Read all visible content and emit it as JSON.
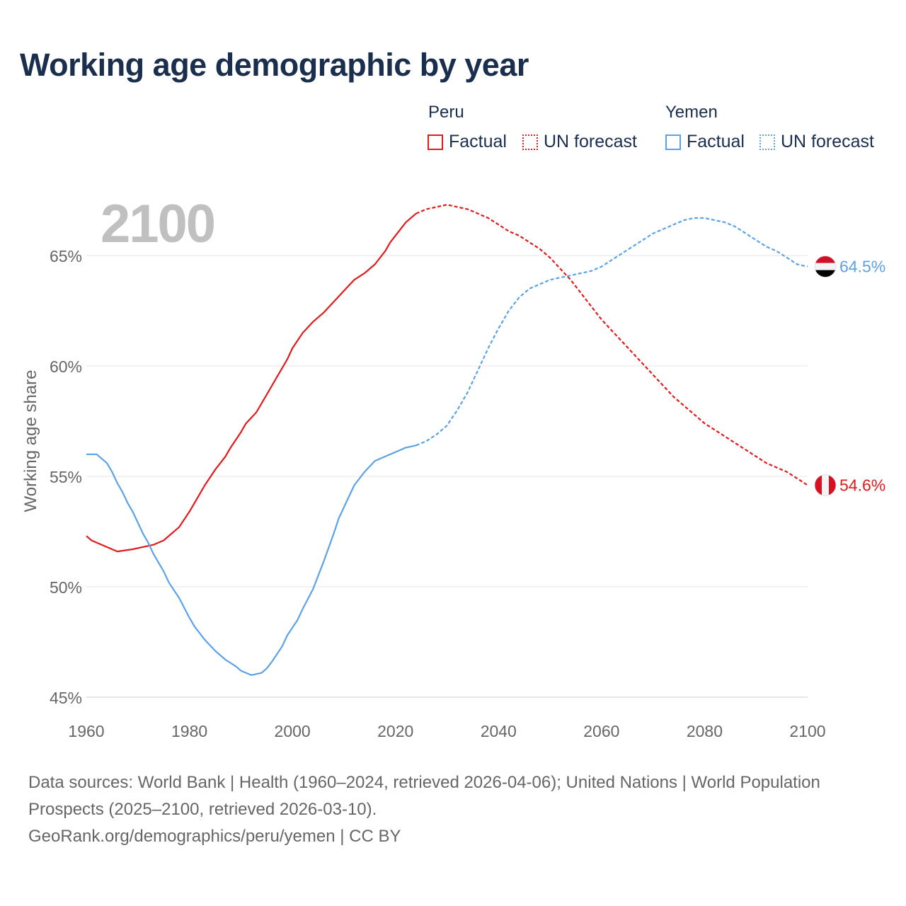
{
  "title": "Working age demographic by year",
  "legend": {
    "groups": [
      {
        "name": "Peru",
        "factual_label": "Factual",
        "forecast_label": "UN forecast",
        "color": "#e31a1c"
      },
      {
        "name": "Yemen",
        "factual_label": "Factual",
        "forecast_label": "UN forecast",
        "color": "#5ba3e6"
      }
    ]
  },
  "year_overlay": "2100",
  "chart_data": {
    "type": "line",
    "title": "Working age demographic by year",
    "xlabel": "",
    "ylabel": "Working age share",
    "xlim": [
      1960,
      2100
    ],
    "ylim": [
      45,
      67.5
    ],
    "x_ticks": [
      1960,
      1980,
      2000,
      2020,
      2040,
      2060,
      2080,
      2100
    ],
    "x_tick_labels": [
      "1960",
      "1980",
      "2000",
      "2020",
      "2040",
      "2060",
      "2080",
      "2100"
    ],
    "y_ticks": [
      45,
      50,
      55,
      60,
      65
    ],
    "y_tick_labels": [
      "45%",
      "50%",
      "55%",
      "60%",
      "65%"
    ],
    "grid": true,
    "factual_end_year": 2024,
    "series": [
      {
        "name": "Peru",
        "color": "#e31a1c",
        "end_label": "54.6%",
        "flag": "peru-flag",
        "points": [
          [
            1960,
            52.3
          ],
          [
            1961,
            52.1
          ],
          [
            1963,
            51.9
          ],
          [
            1965,
            51.7
          ],
          [
            1966,
            51.6
          ],
          [
            1969,
            51.7
          ],
          [
            1971,
            51.8
          ],
          [
            1973,
            51.9
          ],
          [
            1975,
            52.1
          ],
          [
            1978,
            52.7
          ],
          [
            1980,
            53.4
          ],
          [
            1981,
            53.8
          ],
          [
            1983,
            54.6
          ],
          [
            1985,
            55.3
          ],
          [
            1987,
            55.9
          ],
          [
            1988,
            56.3
          ],
          [
            1990,
            57.0
          ],
          [
            1991,
            57.4
          ],
          [
            1993,
            57.9
          ],
          [
            1995,
            58.7
          ],
          [
            1997,
            59.5
          ],
          [
            1999,
            60.3
          ],
          [
            2000,
            60.8
          ],
          [
            2002,
            61.5
          ],
          [
            2004,
            62.0
          ],
          [
            2006,
            62.4
          ],
          [
            2008,
            62.9
          ],
          [
            2010,
            63.4
          ],
          [
            2012,
            63.9
          ],
          [
            2014,
            64.2
          ],
          [
            2016,
            64.6
          ],
          [
            2018,
            65.2
          ],
          [
            2019,
            65.6
          ],
          [
            2021,
            66.2
          ],
          [
            2022,
            66.5
          ],
          [
            2024,
            66.9
          ],
          [
            2026,
            67.1
          ],
          [
            2028,
            67.2
          ],
          [
            2030,
            67.3
          ],
          [
            2032,
            67.2
          ],
          [
            2034,
            67.1
          ],
          [
            2036,
            66.9
          ],
          [
            2038,
            66.7
          ],
          [
            2040,
            66.4
          ],
          [
            2042,
            66.1
          ],
          [
            2044,
            65.9
          ],
          [
            2046,
            65.6
          ],
          [
            2048,
            65.3
          ],
          [
            2050,
            64.9
          ],
          [
            2052,
            64.4
          ],
          [
            2054,
            63.9
          ],
          [
            2056,
            63.3
          ],
          [
            2058,
            62.7
          ],
          [
            2060,
            62.1
          ],
          [
            2062,
            61.6
          ],
          [
            2064,
            61.1
          ],
          [
            2066,
            60.6
          ],
          [
            2068,
            60.1
          ],
          [
            2070,
            59.6
          ],
          [
            2072,
            59.1
          ],
          [
            2074,
            58.6
          ],
          [
            2076,
            58.2
          ],
          [
            2078,
            57.8
          ],
          [
            2080,
            57.4
          ],
          [
            2082,
            57.1
          ],
          [
            2084,
            56.8
          ],
          [
            2086,
            56.5
          ],
          [
            2088,
            56.2
          ],
          [
            2090,
            55.9
          ],
          [
            2092,
            55.6
          ],
          [
            2094,
            55.4
          ],
          [
            2096,
            55.2
          ],
          [
            2098,
            54.9
          ],
          [
            2100,
            54.6
          ]
        ]
      },
      {
        "name": "Yemen",
        "color": "#5ba3e6",
        "end_label": "64.5%",
        "flag": "yemen-flag",
        "points": [
          [
            1960,
            56.0
          ],
          [
            1962,
            56.0
          ],
          [
            1964,
            55.6
          ],
          [
            1965,
            55.2
          ],
          [
            1966,
            54.7
          ],
          [
            1967,
            54.3
          ],
          [
            1968,
            53.8
          ],
          [
            1969,
            53.4
          ],
          [
            1970,
            52.9
          ],
          [
            1971,
            52.4
          ],
          [
            1972,
            52.0
          ],
          [
            1973,
            51.5
          ],
          [
            1974,
            51.1
          ],
          [
            1975,
            50.7
          ],
          [
            1976,
            50.2
          ],
          [
            1978,
            49.5
          ],
          [
            1980,
            48.6
          ],
          [
            1981,
            48.2
          ],
          [
            1983,
            47.6
          ],
          [
            1985,
            47.1
          ],
          [
            1987,
            46.7
          ],
          [
            1989,
            46.4
          ],
          [
            1990,
            46.2
          ],
          [
            1992,
            46.0
          ],
          [
            1994,
            46.1
          ],
          [
            1995,
            46.3
          ],
          [
            1996,
            46.6
          ],
          [
            1998,
            47.3
          ],
          [
            1999,
            47.8
          ],
          [
            2001,
            48.5
          ],
          [
            2002,
            49.0
          ],
          [
            2004,
            49.9
          ],
          [
            2006,
            51.1
          ],
          [
            2008,
            52.4
          ],
          [
            2009,
            53.1
          ],
          [
            2011,
            54.1
          ],
          [
            2012,
            54.6
          ],
          [
            2014,
            55.2
          ],
          [
            2016,
            55.7
          ],
          [
            2018,
            55.9
          ],
          [
            2020,
            56.1
          ],
          [
            2022,
            56.3
          ],
          [
            2024,
            56.4
          ],
          [
            2026,
            56.6
          ],
          [
            2028,
            56.9
          ],
          [
            2030,
            57.3
          ],
          [
            2032,
            58.0
          ],
          [
            2034,
            58.8
          ],
          [
            2036,
            59.8
          ],
          [
            2038,
            60.8
          ],
          [
            2040,
            61.7
          ],
          [
            2042,
            62.5
          ],
          [
            2044,
            63.1
          ],
          [
            2046,
            63.5
          ],
          [
            2048,
            63.7
          ],
          [
            2050,
            63.9
          ],
          [
            2052,
            64.0
          ],
          [
            2054,
            64.1
          ],
          [
            2056,
            64.2
          ],
          [
            2058,
            64.3
          ],
          [
            2060,
            64.5
          ],
          [
            2062,
            64.8
          ],
          [
            2064,
            65.1
          ],
          [
            2066,
            65.4
          ],
          [
            2068,
            65.7
          ],
          [
            2070,
            66.0
          ],
          [
            2072,
            66.2
          ],
          [
            2074,
            66.4
          ],
          [
            2076,
            66.6
          ],
          [
            2078,
            66.7
          ],
          [
            2080,
            66.7
          ],
          [
            2082,
            66.6
          ],
          [
            2084,
            66.5
          ],
          [
            2086,
            66.3
          ],
          [
            2088,
            66.0
          ],
          [
            2090,
            65.7
          ],
          [
            2092,
            65.4
          ],
          [
            2094,
            65.2
          ],
          [
            2096,
            64.9
          ],
          [
            2098,
            64.6
          ],
          [
            2100,
            64.5
          ]
        ]
      }
    ]
  },
  "footer": {
    "sources": "Data sources: World Bank | Health (1960–2024, retrieved 2026-04-06); United Nations | World Population Prospects (2025–2100, retrieved 2026-03-10).",
    "link": "GeoRank.org/demographics/peru/yemen | CC BY"
  }
}
